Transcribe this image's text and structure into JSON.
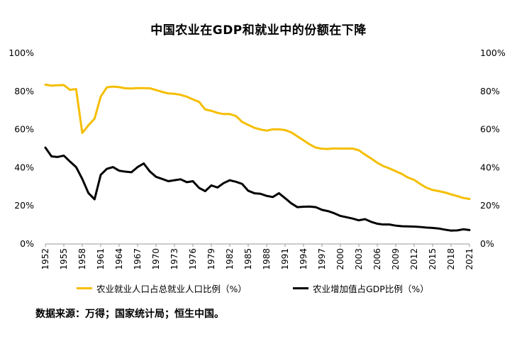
{
  "chart_data": {
    "type": "line",
    "title": "中国农业在GDP和就业中的份额在下降",
    "x": [
      1952,
      1953,
      1954,
      1955,
      1956,
      1957,
      1958,
      1959,
      1960,
      1961,
      1962,
      1963,
      1964,
      1965,
      1966,
      1967,
      1968,
      1969,
      1970,
      1971,
      1972,
      1973,
      1974,
      1975,
      1976,
      1977,
      1978,
      1979,
      1980,
      1981,
      1982,
      1983,
      1984,
      1985,
      1986,
      1987,
      1988,
      1989,
      1990,
      1991,
      1992,
      1993,
      1994,
      1995,
      1996,
      1997,
      1998,
      1999,
      2000,
      2001,
      2002,
      2003,
      2004,
      2005,
      2006,
      2007,
      2008,
      2009,
      2010,
      2011,
      2012,
      2013,
      2014,
      2015,
      2016,
      2017,
      2018,
      2019,
      2020,
      2021
    ],
    "x_ticks": [
      "1952",
      "1955",
      "1958",
      "1961",
      "1964",
      "1967",
      "1970",
      "1973",
      "1976",
      "1979",
      "1982",
      "1985",
      "1988",
      "1991",
      "1994",
      "1997",
      "2000",
      "2003",
      "2006",
      "2009",
      "2012",
      "2015",
      "2018",
      "2021"
    ],
    "y_ticks": [
      "0%",
      "20%",
      "40%",
      "60%",
      "80%",
      "100%"
    ],
    "ylim": [
      0,
      100
    ],
    "series": [
      {
        "name": "农业就业人口占总就业人口比例（%）",
        "color": "#F5BE00",
        "values": [
          83.5,
          83,
          83.2,
          83.3,
          80.8,
          81.2,
          58.2,
          62.2,
          65.7,
          77.2,
          82.1,
          82.5,
          82.2,
          81.6,
          81.5,
          81.7,
          81.7,
          81.6,
          80.7,
          79.7,
          78.9,
          78.7,
          78.2,
          77.2,
          75.8,
          74.5,
          70.5,
          69.8,
          68.7,
          68.1,
          68.1,
          67.1,
          64,
          62.4,
          60.9,
          60,
          59.4,
          60.1,
          60.1,
          59.7,
          58.5,
          56.4,
          54.3,
          52.2,
          50.5,
          49.9,
          49.8,
          50.1,
          50,
          50,
          50,
          49.1,
          46.9,
          44.8,
          42.6,
          40.8,
          39.6,
          38.1,
          36.7,
          34.8,
          33.6,
          31.4,
          29.5,
          28.3,
          27.7,
          27,
          26,
          25.1,
          24.1,
          23.6
        ]
      },
      {
        "name": "农业增加值占GDP比例（%）",
        "color": "#000000",
        "values": [
          50.5,
          45.9,
          45.6,
          46.3,
          43.2,
          40.3,
          34.1,
          26.7,
          23.4,
          36.2,
          39.4,
          40.3,
          38.4,
          37.9,
          37.6,
          40.3,
          42.2,
          38.0,
          35.2,
          34.1,
          32.9,
          33.4,
          33.9,
          32.4,
          32.9,
          29.4,
          27.7,
          30.7,
          29.6,
          31.9,
          33.4,
          32.6,
          31.5,
          27.9,
          26.6,
          26.3,
          25.2,
          24.6,
          26.6,
          24.0,
          21.3,
          19.3,
          19.5,
          19.6,
          19.3,
          17.9,
          17.2,
          16.1,
          14.7,
          14.0,
          13.3,
          12.4,
          13.0,
          11.6,
          10.6,
          10.2,
          10.2,
          9.6,
          9.3,
          9.2,
          9.1,
          8.9,
          8.6,
          8.4,
          8.1,
          7.5,
          7.0,
          7.1,
          7.7,
          7.3
        ]
      }
    ]
  },
  "source": "数据来源：万得；国家统计局；恒生中国。"
}
